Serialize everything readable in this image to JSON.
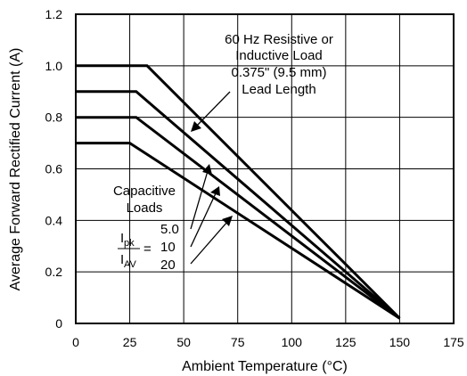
{
  "chart_data": {
    "type": "line",
    "xlabel": "Ambient Temperature (°C)",
    "ylabel": "Average Forward Rectified Current (A)",
    "xlim": [
      0,
      175
    ],
    "ylim": [
      0,
      1.2
    ],
    "x_ticks": [
      "0",
      "25",
      "50",
      "75",
      "100",
      "125",
      "150",
      "175"
    ],
    "y_ticks": [
      "0",
      "0.2",
      "0.4",
      "0.6",
      "0.8",
      "1.0",
      "1.2"
    ],
    "grid": true,
    "series": [
      {
        "name": "60 Hz Resistive or Inductive Load",
        "x": [
          0,
          33,
          150
        ],
        "y": [
          1.0,
          1.0,
          0.02
        ]
      },
      {
        "name": "5.0",
        "x": [
          0,
          28,
          150
        ],
        "y": [
          0.9,
          0.9,
          0.02
        ]
      },
      {
        "name": "10",
        "x": [
          0,
          28,
          150
        ],
        "y": [
          0.8,
          0.8,
          0.02
        ]
      },
      {
        "name": "20",
        "x": [
          0,
          25,
          150
        ],
        "y": [
          0.7,
          0.7,
          0.02
        ]
      }
    ],
    "annotations": {
      "load_lines": [
        "60 Hz Resistive or",
        "Inductive Load",
        "0.375\" (9.5 mm)",
        "Lead Length"
      ],
      "capacitive_lines": [
        "Capacitive",
        "Loads"
      ],
      "ratio_numerator": "I",
      "ratio_numerator_sub": "pk",
      "ratio_denominator": "I",
      "ratio_denominator_sub": "AV",
      "equals": "="
    }
  }
}
